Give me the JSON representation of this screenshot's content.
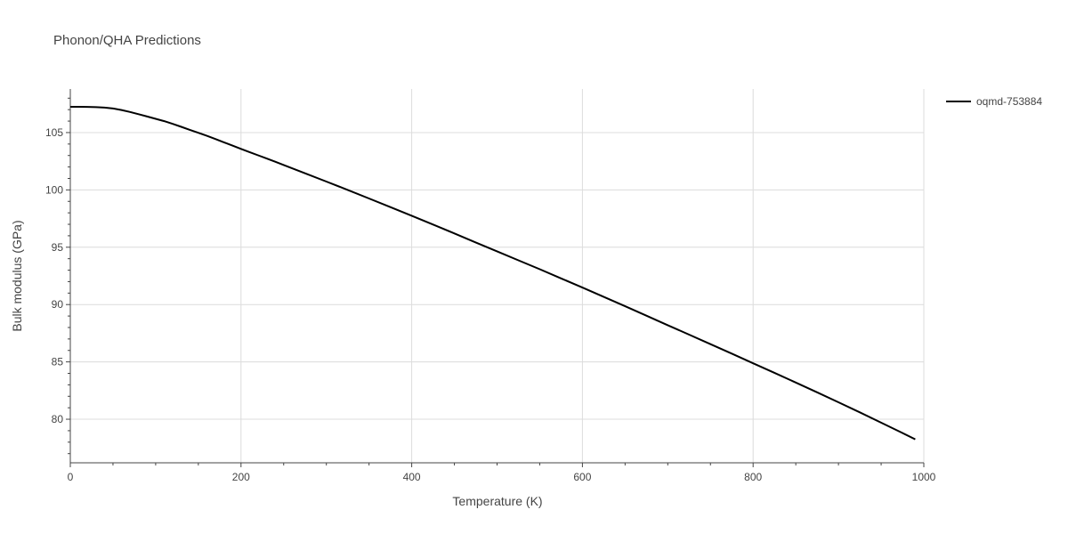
{
  "chart_data": {
    "type": "line",
    "title": "Phonon/QHA Predictions",
    "xlabel": "Temperature (K)",
    "ylabel": "Bulk modulus (GPa)",
    "xlim": [
      0,
      1000
    ],
    "ylim": [
      76.2,
      108.8
    ],
    "x_ticks": [
      0,
      200,
      400,
      600,
      800,
      1000
    ],
    "y_ticks": [
      80,
      85,
      90,
      95,
      100,
      105
    ],
    "grid": true,
    "legend_position": "top-right",
    "series": [
      {
        "name": "oqmd-753884",
        "color": "#000000",
        "x": [
          0,
          10,
          20,
          30,
          40,
          50,
          60,
          70,
          80,
          90,
          100,
          110,
          120,
          130,
          140,
          150,
          160,
          170,
          180,
          190,
          200,
          210,
          220,
          230,
          240,
          250,
          275,
          300,
          325,
          350,
          375,
          400,
          425,
          450,
          475,
          500,
          525,
          550,
          575,
          600,
          625,
          650,
          675,
          700,
          725,
          750,
          775,
          800,
          825,
          850,
          875,
          900,
          925,
          950,
          975,
          990
        ],
        "y": [
          107.25,
          107.25,
          107.24,
          107.22,
          107.18,
          107.1,
          106.97,
          106.8,
          106.6,
          106.4,
          106.2,
          106.0,
          105.76,
          105.5,
          105.24,
          104.98,
          104.72,
          104.44,
          104.15,
          103.86,
          103.58,
          103.3,
          103.02,
          102.74,
          102.46,
          102.17,
          101.45,
          100.73,
          100.0,
          99.25,
          98.5,
          97.75,
          96.98,
          96.2,
          95.42,
          94.64,
          93.86,
          93.08,
          92.28,
          91.48,
          90.67,
          89.85,
          89.03,
          88.2,
          87.38,
          86.55,
          85.72,
          84.88,
          84.05,
          83.2,
          82.35,
          81.48,
          80.6,
          79.7,
          78.8,
          78.25
        ]
      }
    ]
  }
}
